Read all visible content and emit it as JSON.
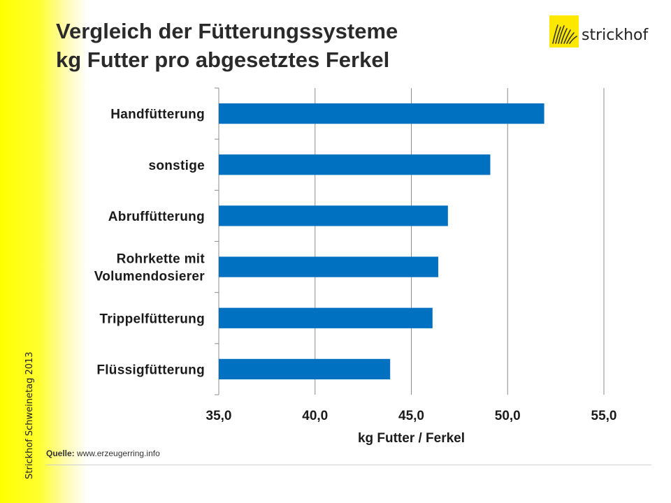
{
  "slide": {
    "title_line1": "Vergleich der Fütterungssysteme",
    "title_line2": "kg Futter pro abgesetztes Ferkel",
    "side_caption": "Strickhof Schweinetag 2013",
    "logo_text": "strickhof",
    "source_label": "Quelle:",
    "source_url": "www.erzeugerring.info"
  },
  "colors": {
    "bar": "#0070c0",
    "side_band": "#ffff00",
    "logo_mark": "#ffe800"
  },
  "chart_data": {
    "type": "bar",
    "orientation": "horizontal",
    "categories": [
      "Handfütterung",
      "sonstige",
      "Abruffütterung",
      "Rohrkette mit Volumendosierer",
      "Trippelfütterung",
      "Flüssigfütterung"
    ],
    "category_lines": [
      [
        "Handfütterung"
      ],
      [
        "sonstige"
      ],
      [
        "Abruffütterung"
      ],
      [
        "Rohrkette mit",
        "Volumendosierer"
      ],
      [
        "Trippelfütterung"
      ],
      [
        "Flüssigfütterung"
      ]
    ],
    "values": [
      51.9,
      49.1,
      46.9,
      46.4,
      46.1,
      43.9
    ],
    "xlim": [
      35,
      55
    ],
    "xticks": [
      "35,0",
      "40,0",
      "45,0",
      "50,0",
      "55,0"
    ],
    "xtick_values": [
      35,
      40,
      45,
      50,
      55
    ],
    "xlabel": "kg Futter / Ferkel",
    "ylabel": "",
    "title": "",
    "grid": "vertical",
    "legend": "none"
  }
}
